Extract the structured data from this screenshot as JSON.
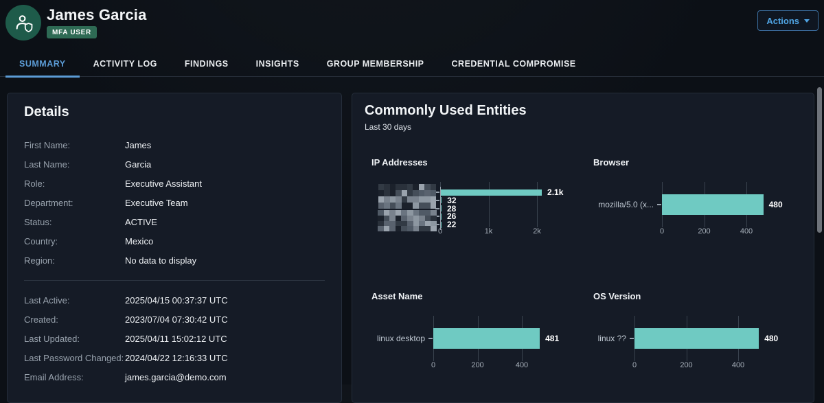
{
  "header": {
    "user_name": "James Garcia",
    "badge": "MFA USER",
    "actions_label": "Actions"
  },
  "tabs": [
    {
      "label": "SUMMARY",
      "active": true
    },
    {
      "label": "ACTIVITY LOG",
      "active": false
    },
    {
      "label": "FINDINGS",
      "active": false
    },
    {
      "label": "INSIGHTS",
      "active": false
    },
    {
      "label": "GROUP MEMBERSHIP",
      "active": false
    },
    {
      "label": "CREDENTIAL COMPROMISE",
      "active": false
    }
  ],
  "details": {
    "title": "Details",
    "sections": [
      [
        {
          "label": "First Name:",
          "value": "James"
        },
        {
          "label": "Last Name:",
          "value": "Garcia"
        },
        {
          "label": "Role:",
          "value": "Executive Assistant"
        },
        {
          "label": "Department:",
          "value": "Executive Team"
        },
        {
          "label": "Status:",
          "value": "ACTIVE"
        },
        {
          "label": "Country:",
          "value": "Mexico"
        },
        {
          "label": "Region:",
          "value": "No data to display"
        }
      ],
      [
        {
          "label": "Last Active:",
          "value": "2025/04/15 00:37:37 UTC"
        },
        {
          "label": "Created:",
          "value": "2023/07/04 07:30:42 UTC"
        },
        {
          "label": "Last Updated:",
          "value": "2025/04/11 15:02:12 UTC"
        },
        {
          "label": "Last Password Changed:",
          "value": "2024/04/22 12:16:33 UTC"
        },
        {
          "label": "Email Address:",
          "value": "james.garcia@demo.com"
        }
      ]
    ]
  },
  "entities": {
    "title": "Commonly Used Entities",
    "subtitle": "Last 30 days"
  },
  "chart_data": [
    {
      "type": "bar",
      "orientation": "horizontal",
      "title": "IP Addresses",
      "labels_redacted": true,
      "categories": [
        "",
        "",
        "",
        "",
        ""
      ],
      "values": [
        2100,
        32,
        28,
        26,
        22
      ],
      "value_labels": [
        "2.1k",
        "32",
        "28",
        "26",
        "22"
      ],
      "xticks": [
        "0",
        "1k",
        "2k"
      ],
      "xtick_values": [
        0,
        1000,
        2000
      ],
      "grid": true,
      "legend": false
    },
    {
      "type": "bar",
      "orientation": "horizontal",
      "title": "Browser",
      "labels_redacted": false,
      "categories": [
        "mozilla/5.0 (x..."
      ],
      "values": [
        480
      ],
      "value_labels": [
        "480"
      ],
      "xticks": [
        "0",
        "200",
        "400"
      ],
      "xtick_values": [
        0,
        200,
        400
      ],
      "grid": true,
      "legend": false
    },
    {
      "type": "bar",
      "orientation": "horizontal",
      "title": "Asset Name",
      "labels_redacted": false,
      "categories": [
        "linux desktop"
      ],
      "values": [
        481
      ],
      "value_labels": [
        "481"
      ],
      "xticks": [
        "0",
        "200",
        "400"
      ],
      "xtick_values": [
        0,
        200,
        400
      ],
      "grid": true,
      "legend": false
    },
    {
      "type": "bar",
      "orientation": "horizontal",
      "title": "OS Version",
      "labels_redacted": false,
      "categories": [
        "linux ??"
      ],
      "values": [
        480
      ],
      "value_labels": [
        "480"
      ],
      "xticks": [
        "0",
        "200",
        "400"
      ],
      "xtick_values": [
        0,
        200,
        400
      ],
      "grid": true,
      "legend": false
    }
  ],
  "colors": {
    "bar_teal": "#6fcac2",
    "accent_blue": "#5b9bd5",
    "actions_blue": "#4fa3e2",
    "avatar_green": "#1e5b4a",
    "badge_green": "#2e6a54",
    "panel_bg": "#151b26",
    "page_bg": "#0c1016"
  }
}
